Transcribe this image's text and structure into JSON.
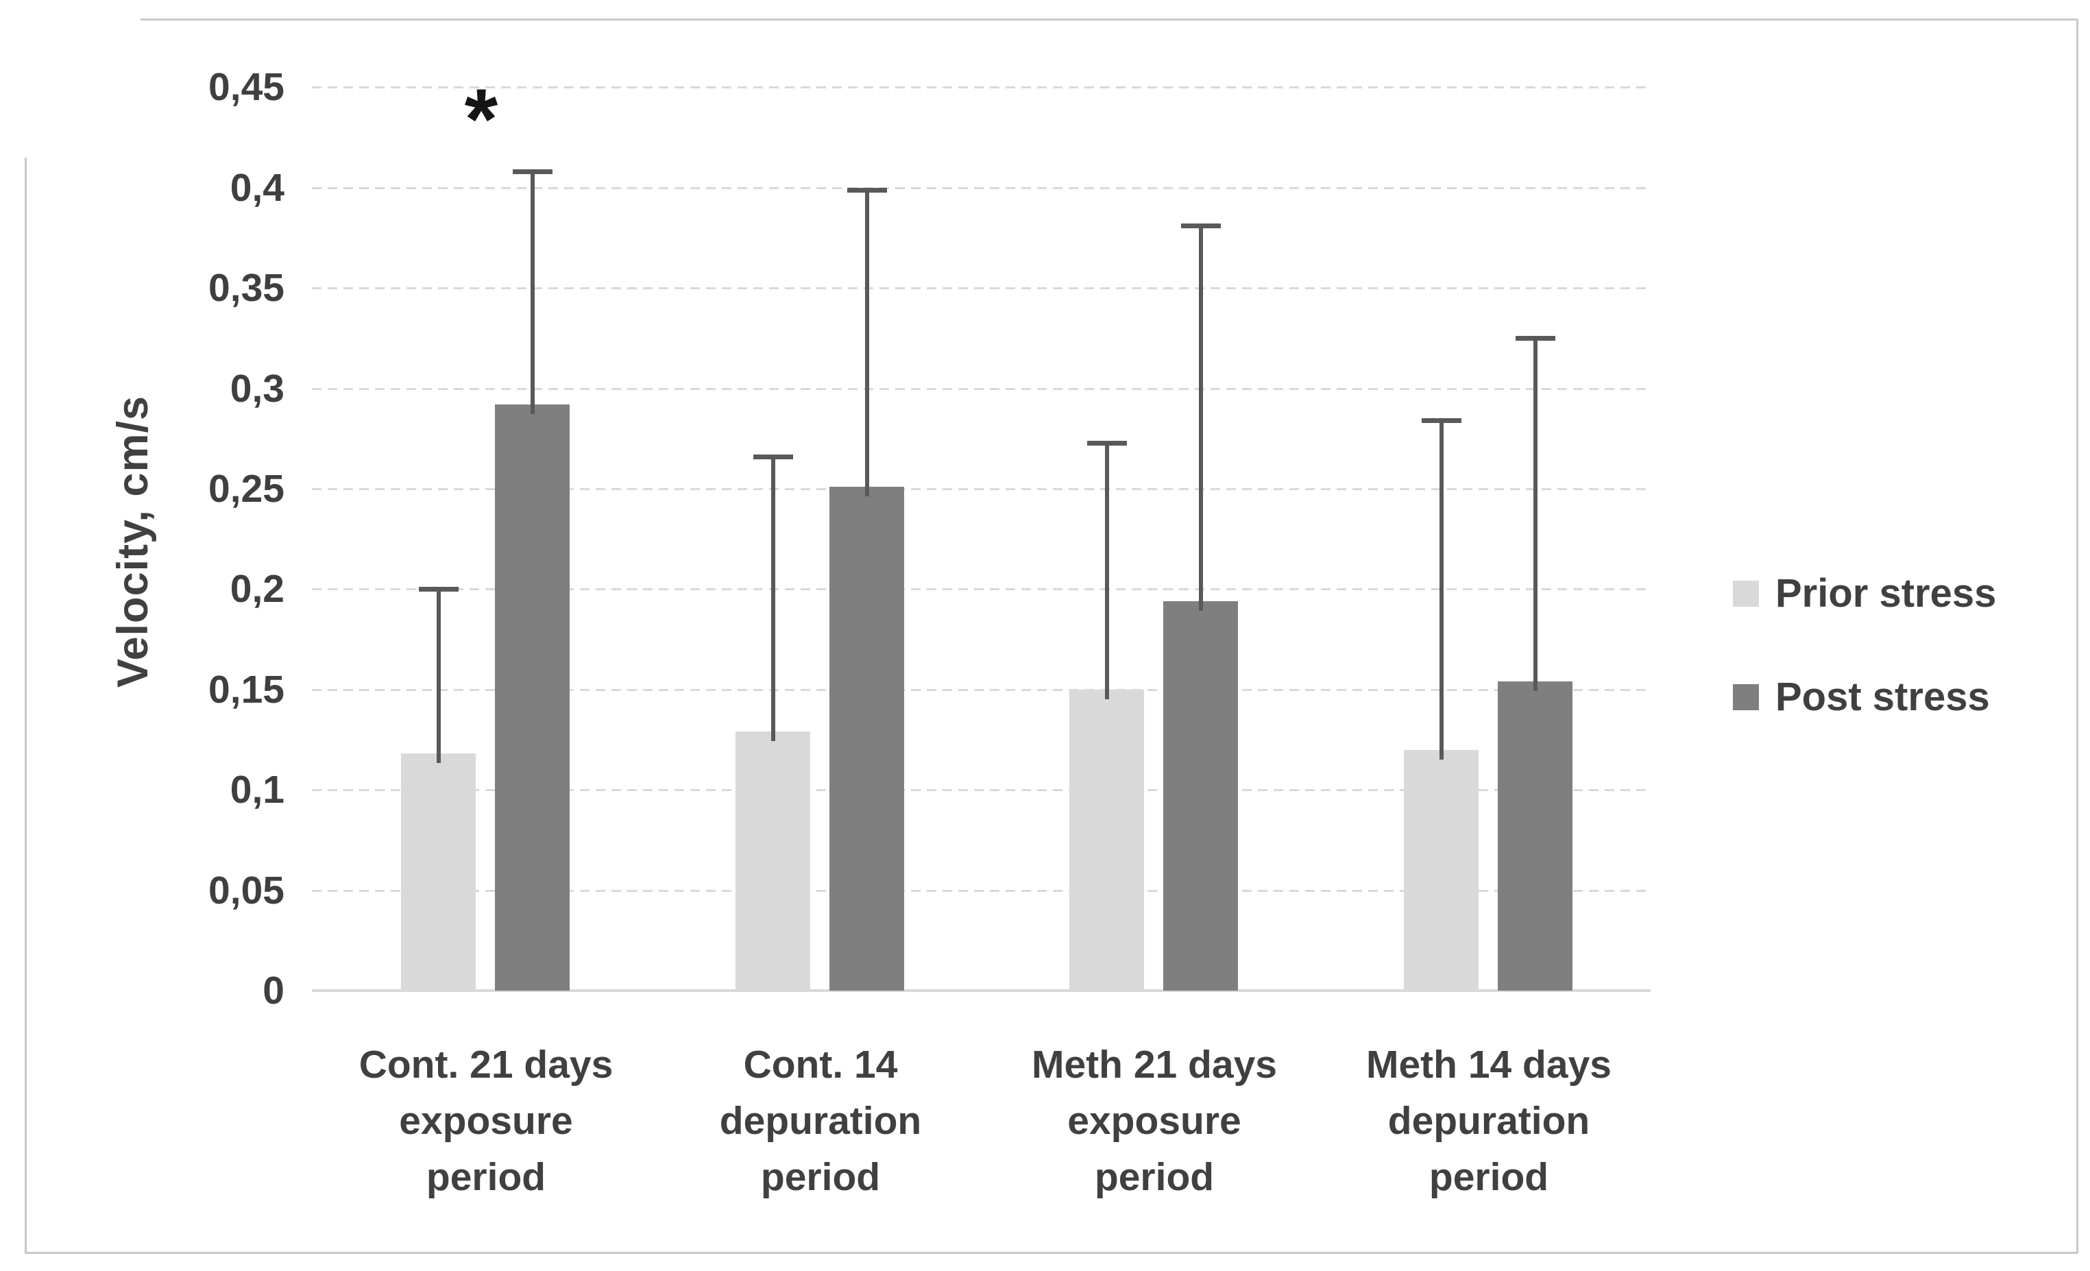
{
  "chart_data": {
    "type": "bar",
    "title": "",
    "categories": [
      "Cont. 21 days exposure period",
      "Cont. 14 depuration period",
      "Meth 21 days exposure period",
      "Meth 14 days depuration period"
    ],
    "categories_lines": [
      [
        "Cont. 21 days",
        "exposure",
        "period"
      ],
      [
        "Cont. 14",
        "depuration",
        "period"
      ],
      [
        "Meth 21 days",
        "exposure",
        "period"
      ],
      [
        "Meth 14 days",
        "depuration",
        "period"
      ]
    ],
    "series": [
      {
        "name": "Prior stress",
        "color": "#d9d9d9",
        "values": [
          0.118,
          0.129,
          0.15,
          0.12
        ],
        "error_bar_top": [
          0.2,
          0.266,
          0.273,
          0.284
        ]
      },
      {
        "name": "Post stress",
        "color": "#7f7f7f",
        "values": [
          0.292,
          0.251,
          0.194,
          0.154
        ],
        "error_bar_top": [
          0.408,
          0.399,
          0.381,
          0.325
        ]
      }
    ],
    "xlabel": "",
    "ylabel": "Velocity, cm/s",
    "ylim": [
      0,
      0.45
    ],
    "ytick_step": 0.05,
    "ytick_labels": [
      "0",
      "0,05",
      "0,1",
      "0,15",
      "0,2",
      "0,25",
      "0,3",
      "0,35",
      "0,4",
      "0,45"
    ],
    "grid": true,
    "gridline_style": "dashed",
    "legend_position": "right",
    "significance_marker": {
      "symbol": "*",
      "series": "Post stress",
      "category": "Cont. 21 days exposure period"
    },
    "colors": {
      "prior_stress": "#d9d9d9",
      "post_stress": "#7f7f7f",
      "error_bars": "#595959",
      "gridlines": "#d9d9d9",
      "text": "#404040",
      "frame": "#c9c9c9"
    }
  }
}
